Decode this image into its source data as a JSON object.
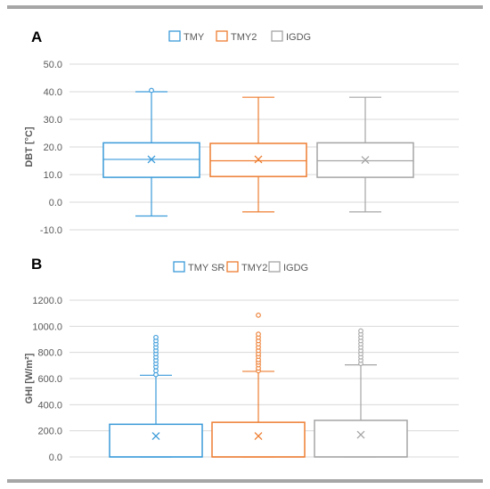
{
  "panels": [
    {
      "letter": "A"
    },
    {
      "letter": "B"
    }
  ],
  "colors": {
    "tmy": "#3a9ad9",
    "tmy2": "#ed7d31",
    "igdg": "#a5a5a5",
    "grid": "#d9d9d9",
    "axis_text": "#595959"
  },
  "chart_data": [
    {
      "type": "box",
      "panel": "A",
      "ylabel": "DBT [°C]",
      "ylim": [
        -10,
        50
      ],
      "yticks": [
        "-10.0",
        "0.0",
        "10.0",
        "20.0",
        "30.0",
        "40.0",
        "50.0"
      ],
      "ytick_values": [
        -10,
        0,
        10,
        20,
        30,
        40,
        50
      ],
      "grid": true,
      "legend_position": "top",
      "series": [
        {
          "name": "TMY",
          "color": "#3a9ad9",
          "min": -5.0,
          "q1": 9.0,
          "median": 15.5,
          "q3": 21.5,
          "max": 40.0,
          "mean": 15.5,
          "outliers": [
            40.5
          ]
        },
        {
          "name": "TMY2",
          "color": "#ed7d31",
          "min": -3.5,
          "q1": 9.3,
          "median": 15.0,
          "q3": 21.3,
          "max": 38.0,
          "mean": 15.5,
          "outliers": []
        },
        {
          "name": "IGDG",
          "color": "#a5a5a5",
          "min": -3.5,
          "q1": 9.0,
          "median": 15.0,
          "q3": 21.5,
          "max": 38.0,
          "mean": 15.3,
          "outliers": []
        }
      ]
    },
    {
      "type": "box",
      "panel": "B",
      "ylabel": "GHI [W/m²]",
      "ylim": [
        0,
        1200
      ],
      "yticks": [
        "0.0",
        "200.0",
        "400.0",
        "600.0",
        "800.0",
        "1000.0",
        "1200.0"
      ],
      "ytick_values": [
        0,
        200,
        400,
        600,
        800,
        1000,
        1200
      ],
      "grid": true,
      "legend_position": "top",
      "series": [
        {
          "name": "TMY SR",
          "color": "#3a9ad9",
          "min": 0,
          "q1": 0,
          "median": 0,
          "q3": 250,
          "max": 625,
          "mean": 160,
          "outliers": [
            630,
            660,
            690,
            715,
            740,
            765,
            790,
            815,
            840,
            865,
            890,
            915
          ]
        },
        {
          "name": "TMY2",
          "color": "#ed7d31",
          "min": 0,
          "q1": 0,
          "median": 0,
          "q3": 265,
          "max": 655,
          "mean": 160,
          "outliers": [
            660,
            680,
            705,
            725,
            745,
            770,
            790,
            815,
            840,
            865,
            890,
            915,
            940,
            1085
          ]
        },
        {
          "name": "IGDG",
          "color": "#a5a5a5",
          "min": 0,
          "q1": 0,
          "median": 0,
          "q3": 280,
          "max": 705,
          "mean": 170,
          "outliers": [
            715,
            740,
            765,
            790,
            815,
            840,
            865,
            890,
            915,
            940,
            965
          ]
        }
      ]
    }
  ]
}
